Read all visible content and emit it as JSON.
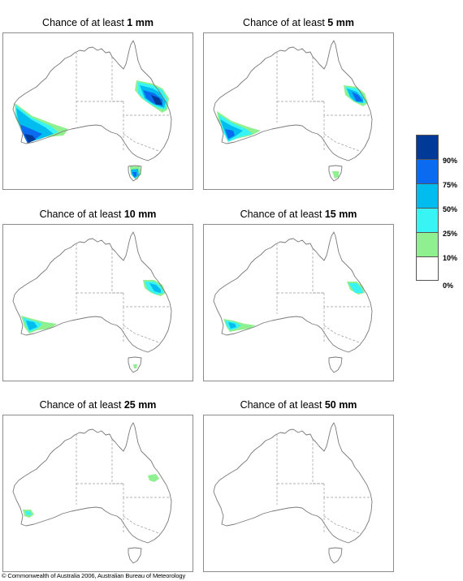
{
  "colors": {
    "p90": "#003a99",
    "p75": "#0a6bf0",
    "p50": "#00bcef",
    "p25": "#38f4f4",
    "p10": "#8ef08e",
    "p0": "#ffffff",
    "coast": "#7a7a7a",
    "border": "#9a9a9a"
  },
  "panels": [
    {
      "title_prefix": "Chance of at least ",
      "amount": "1 mm"
    },
    {
      "title_prefix": "Chance of at least ",
      "amount": "5 mm"
    },
    {
      "title_prefix": "Chance of at least ",
      "amount": "10 mm"
    },
    {
      "title_prefix": "Chance of at least ",
      "amount": "15 mm"
    },
    {
      "title_prefix": "Chance of at least ",
      "amount": "25 mm"
    },
    {
      "title_prefix": "Chance of at least ",
      "amount": "50 mm"
    }
  ],
  "legend": {
    "labels": [
      "90%",
      "75%",
      "50%",
      "25%",
      "10%",
      "0%"
    ]
  },
  "copyright": "© Commonwealth of Australia 2006, Australian Bureau of Meteorology"
}
